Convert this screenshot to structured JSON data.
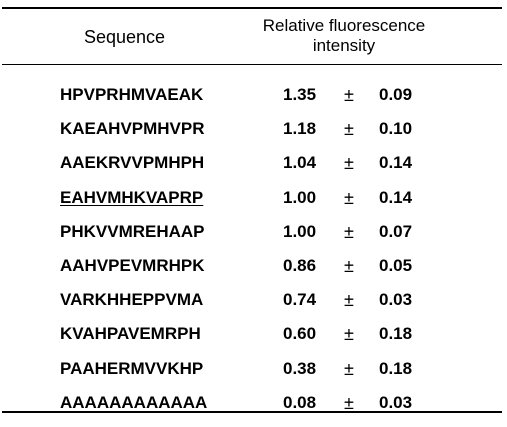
{
  "table": {
    "headers": {
      "sequence": "Sequence",
      "rfi_line1": "Relative fluorescence",
      "rfi_line2": "intensity"
    },
    "rows": [
      {
        "sequence": "HPVPRHMVAEAK",
        "value": "1.35",
        "pm": "±",
        "error": "0.09",
        "underlined": false
      },
      {
        "sequence": "KAEAHVPMHVPR",
        "value": "1.18",
        "pm": "±",
        "error": "0.10",
        "underlined": false
      },
      {
        "sequence": "AAEKRVVPMHPH",
        "value": "1.04",
        "pm": "±",
        "error": "0.14",
        "underlined": false
      },
      {
        "sequence": "EAHVMHKVAPRP",
        "value": "1.00",
        "pm": "±",
        "error": "0.14",
        "underlined": true
      },
      {
        "sequence": "PHKVVMREHAAP",
        "value": "1.00",
        "pm": "±",
        "error": "0.07",
        "underlined": false
      },
      {
        "sequence": "AAHVPEVMRHPK",
        "value": "0.86",
        "pm": "±",
        "error": "0.05",
        "underlined": false
      },
      {
        "sequence": "VARKHHEPPVMA",
        "value": "0.74",
        "pm": "±",
        "error": "0.03",
        "underlined": false
      },
      {
        "sequence": "KVAHPAVEMRPH",
        "value": "0.60",
        "pm": "±",
        "error": "0.18",
        "underlined": false
      },
      {
        "sequence": "PAAHERMVVKHP",
        "value": "0.38",
        "pm": "±",
        "error": "0.18",
        "underlined": false
      },
      {
        "sequence": "AAAAAAAAAAAA",
        "value": "0.08",
        "pm": "±",
        "error": "0.03",
        "underlined": false
      }
    ]
  }
}
